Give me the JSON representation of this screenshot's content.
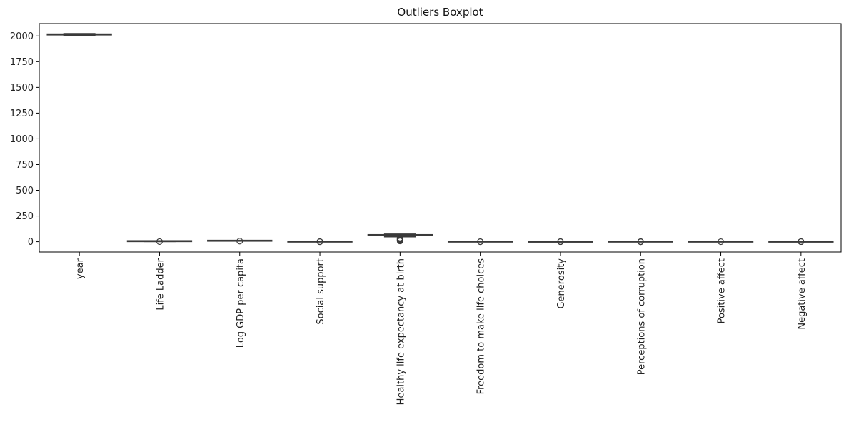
{
  "chart_data": {
    "type": "boxplot",
    "title": "Outliers Boxplot",
    "xlabel": "",
    "ylabel": "",
    "ylim": [
      -100,
      2120
    ],
    "yticks": [
      0,
      250,
      500,
      750,
      1000,
      1250,
      1500,
      1750,
      2000
    ],
    "grid": false,
    "box_color": "#ffffff",
    "edge_color": "#3a3a3a",
    "categories": [
      "year",
      "Life Ladder",
      "Log GDP per capita",
      "Social support",
      "Healthy life expectancy at birth",
      "Freedom to make life choices",
      "Generosity",
      "Perceptions of corruption",
      "Positive affect",
      "Negative affect"
    ],
    "boxes": [
      {
        "min": 2005,
        "q1": 2010,
        "median": 2015,
        "q3": 2019,
        "max": 2023,
        "outliers": []
      },
      {
        "min": 1.3,
        "q1": 4.6,
        "median": 5.4,
        "q3": 6.2,
        "max": 8.0,
        "outliers": [
          1.3
        ]
      },
      {
        "min": 5.5,
        "q1": 8.5,
        "median": 9.5,
        "q3": 10.4,
        "max": 11.7,
        "outliers": [
          5.5
        ]
      },
      {
        "min": 0.5,
        "q1": 0.75,
        "median": 0.84,
        "q3": 0.9,
        "max": 1.0,
        "outliers": [
          0.23,
          0.3,
          0.4
        ]
      },
      {
        "min": 47,
        "q1": 59,
        "median": 65,
        "q3": 68.5,
        "max": 74,
        "outliers": [
          6.7,
          12,
          17,
          22,
          27,
          32,
          37
        ]
      },
      {
        "min": 0.3,
        "q1": 0.66,
        "median": 0.77,
        "q3": 0.86,
        "max": 0.99,
        "outliers": [
          0.23,
          0.26
        ]
      },
      {
        "min": -0.34,
        "q1": -0.11,
        "median": -0.02,
        "q3": 0.09,
        "max": 0.41,
        "outliers": [
          0.5,
          0.6,
          0.7
        ]
      },
      {
        "min": 0.4,
        "q1": 0.69,
        "median": 0.8,
        "q3": 0.87,
        "max": 0.98,
        "outliers": [
          0.04,
          0.1,
          0.2,
          0.3
        ]
      },
      {
        "min": 0.28,
        "q1": 0.57,
        "median": 0.66,
        "q3": 0.74,
        "max": 0.88,
        "outliers": [
          0.2
        ]
      },
      {
        "min": 0.08,
        "q1": 0.21,
        "median": 0.26,
        "q3": 0.32,
        "max": 0.5,
        "outliers": [
          0.55,
          0.6,
          0.7
        ]
      }
    ]
  }
}
